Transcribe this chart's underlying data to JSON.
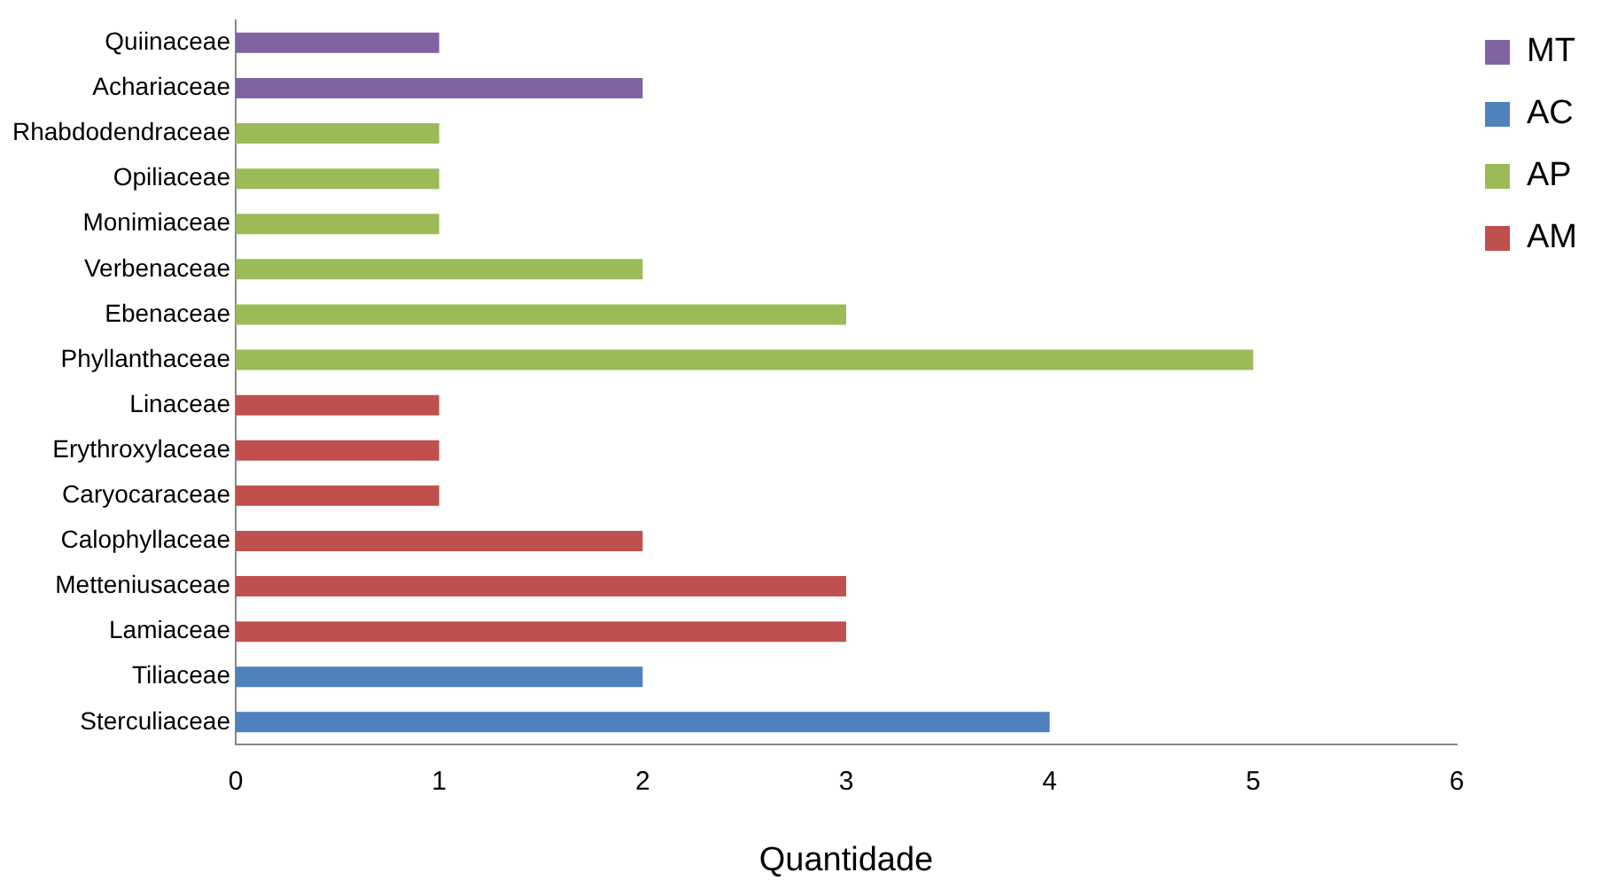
{
  "chart_data": {
    "type": "bar",
    "orientation": "horizontal",
    "xlabel": "Quantidade",
    "categories": [
      "Quiinaceae",
      "Achariaceae",
      "Rhabdodendraceae",
      "Opiliaceae",
      "Monimiaceae",
      "Verbenaceae",
      "Ebenaceae",
      "Phyllanthaceae",
      "Linaceae",
      "Erythroxylaceae",
      "Caryocaraceae",
      "Calophyllaceae",
      "Metteniusaceae",
      "Lamiaceae",
      "Tiliaceae",
      "Sterculiaceae"
    ],
    "series": [
      {
        "name": "MT",
        "color": "#8064a2",
        "values": [
          1,
          2,
          null,
          null,
          null,
          null,
          null,
          null,
          null,
          null,
          null,
          null,
          null,
          null,
          null,
          null
        ]
      },
      {
        "name": "AC",
        "color": "#4f81bd",
        "values": [
          null,
          null,
          null,
          null,
          null,
          null,
          null,
          null,
          null,
          null,
          null,
          null,
          null,
          null,
          2,
          4
        ]
      },
      {
        "name": "AP",
        "color": "#9bbb59",
        "values": [
          null,
          null,
          1,
          1,
          1,
          2,
          3,
          5,
          null,
          null,
          null,
          null,
          null,
          null,
          null,
          null
        ]
      },
      {
        "name": "AM",
        "color": "#c0504d",
        "values": [
          null,
          null,
          null,
          null,
          null,
          null,
          null,
          null,
          1,
          1,
          1,
          2,
          3,
          3,
          null,
          null
        ]
      }
    ],
    "xlim": [
      0,
      6
    ],
    "xticks": [
      0,
      1,
      2,
      3,
      4,
      5,
      6
    ],
    "grid": false,
    "legend": "top right"
  }
}
